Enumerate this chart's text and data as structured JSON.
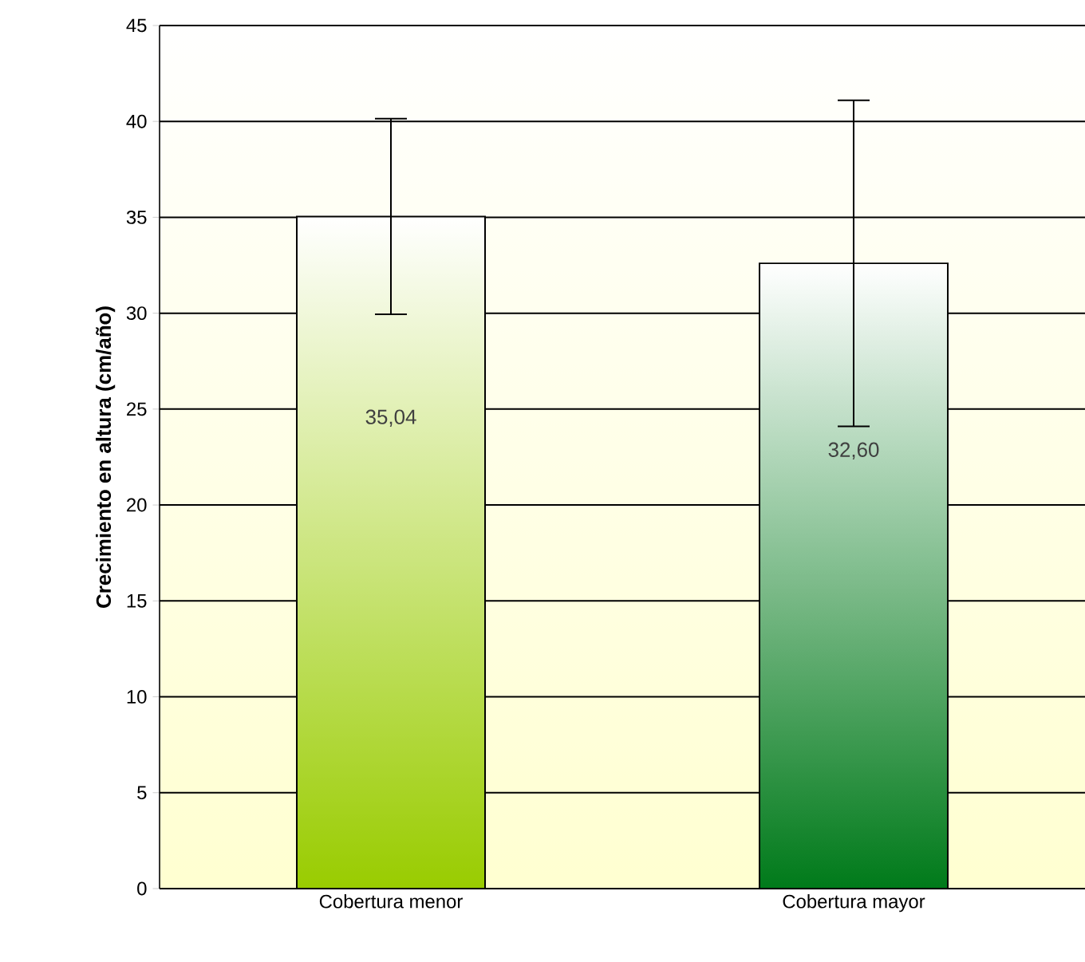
{
  "chart_data": {
    "type": "bar",
    "ylabel": "**Crecimiento en altura (cm/año)**",
    "categories": [
      "Cobertura menor",
      "Cobertura mayor"
    ],
    "values": [
      35.04,
      32.6
    ],
    "colors": [
      "#99cc00",
      "#007a1a"
    ],
    "errors": [
      5.1,
      8.5
    ],
    "value_labels": [
      "35,04",
      "32,60"
    ],
    "ylim": [
      0,
      45
    ],
    "yticks": [
      0,
      5,
      10,
      15,
      20,
      25,
      30,
      35,
      40,
      45
    ],
    "grid": "y"
  }
}
